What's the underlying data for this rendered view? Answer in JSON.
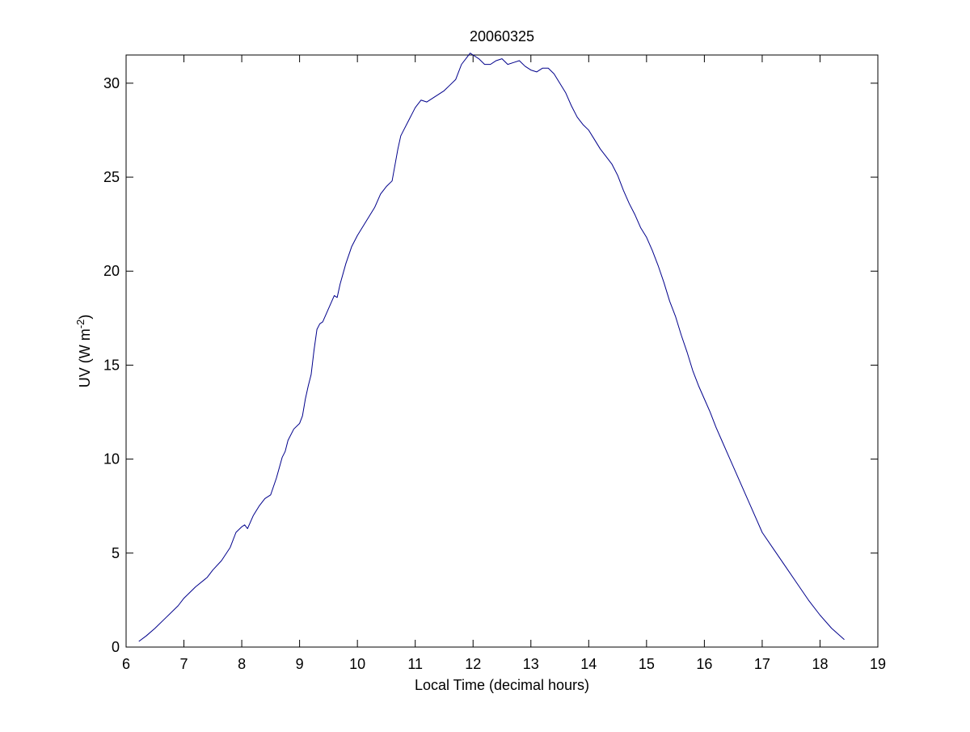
{
  "chart_data": {
    "type": "line",
    "title": "20060325",
    "xlabel": "Local Time (decimal hours)",
    "ylabel": {
      "base": "UV (W m",
      "superscript": "-2",
      "close": ")"
    },
    "xlim": [
      6,
      19
    ],
    "ylim": [
      0,
      31.5
    ],
    "xticks": [
      6,
      7,
      8,
      9,
      10,
      11,
      12,
      13,
      14,
      15,
      16,
      17,
      18,
      19
    ],
    "yticks": [
      0,
      5,
      10,
      15,
      20,
      25,
      30
    ],
    "grid": false,
    "legend": "none",
    "series": [
      {
        "color": "#00008B",
        "x": [
          6.22,
          6.35,
          6.5,
          6.7,
          6.9,
          7.0,
          7.2,
          7.4,
          7.5,
          7.65,
          7.8,
          7.9,
          8.0,
          8.05,
          8.1,
          8.2,
          8.3,
          8.4,
          8.5,
          8.6,
          8.7,
          8.75,
          8.8,
          8.9,
          9.0,
          9.05,
          9.1,
          9.15,
          9.2,
          9.25,
          9.3,
          9.35,
          9.4,
          9.5,
          9.6,
          9.65,
          9.7,
          9.8,
          9.9,
          10.0,
          10.1,
          10.2,
          10.3,
          10.4,
          10.5,
          10.6,
          10.7,
          10.75,
          10.8,
          10.9,
          11.0,
          11.1,
          11.2,
          11.3,
          11.4,
          11.5,
          11.6,
          11.7,
          11.8,
          11.9,
          11.95,
          12.0,
          12.1,
          12.2,
          12.3,
          12.4,
          12.5,
          12.6,
          12.7,
          12.8,
          12.9,
          13.0,
          13.1,
          13.2,
          13.3,
          13.4,
          13.5,
          13.6,
          13.7,
          13.8,
          13.9,
          14.0,
          14.1,
          14.2,
          14.3,
          14.4,
          14.5,
          14.6,
          14.7,
          14.8,
          14.9,
          15.0,
          15.1,
          15.2,
          15.3,
          15.4,
          15.5,
          15.6,
          15.7,
          15.8,
          15.9,
          16.0,
          16.1,
          16.2,
          16.3,
          16.4,
          16.5,
          16.6,
          16.7,
          16.8,
          16.9,
          17.0,
          17.2,
          17.4,
          17.6,
          17.8,
          18.0,
          18.2,
          18.42
        ],
        "y": [
          0.3,
          0.6,
          1.0,
          1.6,
          2.2,
          2.6,
          3.2,
          3.7,
          4.1,
          4.6,
          5.3,
          6.1,
          6.4,
          6.5,
          6.3,
          7.0,
          7.5,
          7.9,
          8.1,
          9.0,
          10.1,
          10.4,
          11.0,
          11.6,
          11.9,
          12.3,
          13.2,
          13.9,
          14.5,
          15.8,
          16.9,
          17.2,
          17.3,
          18.0,
          18.7,
          18.6,
          19.3,
          20.4,
          21.3,
          21.9,
          22.4,
          22.9,
          23.4,
          24.1,
          24.5,
          24.8,
          26.5,
          27.2,
          27.5,
          28.1,
          28.7,
          29.1,
          29.0,
          29.2,
          29.4,
          29.6,
          29.9,
          30.2,
          31.0,
          31.4,
          31.6,
          31.5,
          31.3,
          31.0,
          31.0,
          31.2,
          31.3,
          31.0,
          31.1,
          31.2,
          30.9,
          30.7,
          30.6,
          30.8,
          30.8,
          30.5,
          30.0,
          29.5,
          28.8,
          28.2,
          27.8,
          27.5,
          27.0,
          26.5,
          26.1,
          25.7,
          25.1,
          24.3,
          23.6,
          23.0,
          22.3,
          21.8,
          21.1,
          20.3,
          19.4,
          18.4,
          17.6,
          16.6,
          15.7,
          14.7,
          13.9,
          13.2,
          12.5,
          11.7,
          11.0,
          10.3,
          9.6,
          8.9,
          8.2,
          7.5,
          6.8,
          6.1,
          5.2,
          4.3,
          3.4,
          2.5,
          1.7,
          1.0,
          0.4
        ]
      }
    ]
  }
}
